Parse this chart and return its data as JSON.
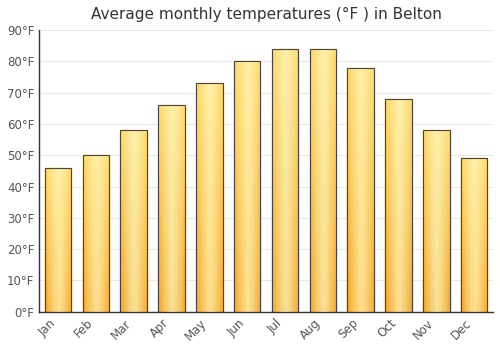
{
  "title": "Average monthly temperatures (°F ) in Belton",
  "months": [
    "Jan",
    "Feb",
    "Mar",
    "Apr",
    "May",
    "Jun",
    "Jul",
    "Aug",
    "Sep",
    "Oct",
    "Nov",
    "Dec"
  ],
  "values": [
    46,
    50,
    58,
    66,
    73,
    80,
    84,
    84,
    78,
    68,
    58,
    49
  ],
  "bar_color_bottom": "#F5A623",
  "bar_color_top": "#FFD966",
  "bar_color_center": "#FFCA28",
  "bar_edge_color": "#555555",
  "ylim": [
    0,
    90
  ],
  "yticks": [
    0,
    10,
    20,
    30,
    40,
    50,
    60,
    70,
    80,
    90
  ],
  "ytick_labels": [
    "0°F",
    "10°F",
    "20°F",
    "30°F",
    "40°F",
    "50°F",
    "60°F",
    "70°F",
    "80°F",
    "90°F"
  ],
  "background_color": "#ffffff",
  "grid_color": "#e8e8e8",
  "title_fontsize": 11,
  "tick_fontsize": 8.5,
  "bar_width": 0.7,
  "tick_color": "#555555"
}
